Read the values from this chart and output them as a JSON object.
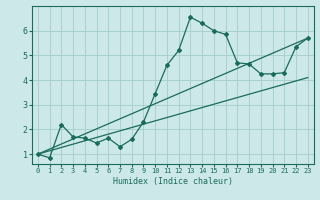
{
  "title": "",
  "xlabel": "Humidex (Indice chaleur)",
  "ylabel": "",
  "bg_color": "#cce8e8",
  "grid_color": "#aad0d0",
  "line_color": "#1a6b5a",
  "xlim": [
    -0.5,
    23.5
  ],
  "ylim": [
    0.6,
    7.0
  ],
  "yticks": [
    1,
    2,
    3,
    4,
    5,
    6
  ],
  "xticks": [
    0,
    1,
    2,
    3,
    4,
    5,
    6,
    7,
    8,
    9,
    10,
    11,
    12,
    13,
    14,
    15,
    16,
    17,
    18,
    19,
    20,
    21,
    22,
    23
  ],
  "series1_x": [
    0,
    1,
    2,
    3,
    4,
    5,
    6,
    7,
    8,
    9,
    10,
    11,
    12,
    13,
    14,
    15,
    16,
    17,
    18,
    19,
    20,
    21,
    22,
    23
  ],
  "series1_y": [
    1.0,
    0.85,
    2.2,
    1.7,
    1.65,
    1.45,
    1.65,
    1.3,
    1.6,
    2.3,
    3.45,
    4.6,
    5.2,
    6.55,
    6.3,
    6.0,
    5.85,
    4.7,
    4.65,
    4.25,
    4.25,
    4.3,
    5.35,
    5.7
  ],
  "series2_x": [
    0,
    23
  ],
  "series2_y": [
    1.0,
    5.7
  ],
  "series3_x": [
    0,
    23
  ],
  "series3_y": [
    1.0,
    4.1
  ]
}
